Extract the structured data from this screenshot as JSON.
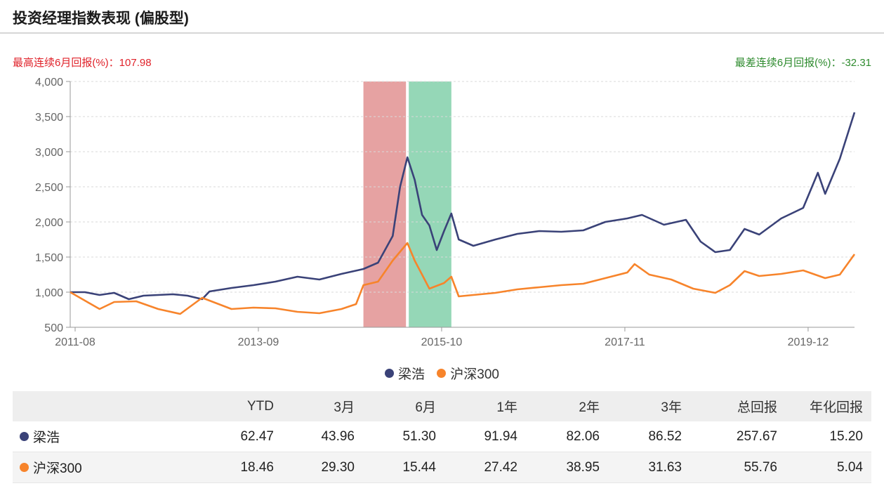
{
  "page_title": "投资经理指数表现 (偏股型)",
  "stats": {
    "best": "最高连续6月回报(%)：107.98",
    "worst": "最差连续6月回报(%)：-32.31"
  },
  "colors": {
    "manager": "#3a4278",
    "benchmark": "#f7842b",
    "best_band": "#d97070",
    "worst_band": "#5cc191",
    "grid": "#d9d9d9",
    "axis": "#999999",
    "tick_text": "#666666"
  },
  "chart_data": {
    "type": "line",
    "x_range": [
      "2011-08",
      "2020-07"
    ],
    "ylim": [
      500,
      4000
    ],
    "y_ticks": [
      "500",
      "1,000",
      "1,500",
      "2,000",
      "2,500",
      "3,000",
      "3,500",
      "4,000"
    ],
    "x_ticks": [
      "2011-08",
      "2013-09",
      "2015-10",
      "2017-11",
      "2019-12"
    ],
    "grid": true,
    "legend_position": "bottom-center",
    "highlight_bands": [
      {
        "name": "最高连续6月回报",
        "start": "2014-12",
        "end": "2015-06"
      },
      {
        "name": "最差连续6月回报",
        "start": "2015-06",
        "end": "2015-12"
      }
    ],
    "series": [
      {
        "name": "梁浩",
        "color": "#3a4278",
        "points": [
          [
            "2011-08",
            1000
          ],
          [
            "2011-10",
            1000
          ],
          [
            "2011-12",
            960
          ],
          [
            "2012-02",
            990
          ],
          [
            "2012-04",
            900
          ],
          [
            "2012-06",
            950
          ],
          [
            "2012-08",
            960
          ],
          [
            "2012-10",
            970
          ],
          [
            "2012-12",
            950
          ],
          [
            "2013-02",
            900
          ],
          [
            "2013-03",
            1010
          ],
          [
            "2013-06",
            1060
          ],
          [
            "2013-09",
            1100
          ],
          [
            "2013-12",
            1150
          ],
          [
            "2014-03",
            1220
          ],
          [
            "2014-06",
            1180
          ],
          [
            "2014-09",
            1260
          ],
          [
            "2014-12",
            1330
          ],
          [
            "2015-02",
            1420
          ],
          [
            "2015-04",
            1800
          ],
          [
            "2015-05",
            2500
          ],
          [
            "2015-06",
            2920
          ],
          [
            "2015-07",
            2600
          ],
          [
            "2015-08",
            2100
          ],
          [
            "2015-09",
            1950
          ],
          [
            "2015-10",
            1600
          ],
          [
            "2015-11",
            1870
          ],
          [
            "2015-12",
            2120
          ],
          [
            "2016-01",
            1750
          ],
          [
            "2016-03",
            1660
          ],
          [
            "2016-06",
            1750
          ],
          [
            "2016-09",
            1830
          ],
          [
            "2016-12",
            1870
          ],
          [
            "2017-03",
            1860
          ],
          [
            "2017-06",
            1880
          ],
          [
            "2017-09",
            2000
          ],
          [
            "2017-12",
            2050
          ],
          [
            "2018-02",
            2100
          ],
          [
            "2018-05",
            1960
          ],
          [
            "2018-08",
            2030
          ],
          [
            "2018-10",
            1720
          ],
          [
            "2018-12",
            1570
          ],
          [
            "2019-02",
            1600
          ],
          [
            "2019-04",
            1900
          ],
          [
            "2019-06",
            1820
          ],
          [
            "2019-09",
            2050
          ],
          [
            "2019-12",
            2200
          ],
          [
            "2020-02",
            2700
          ],
          [
            "2020-03",
            2400
          ],
          [
            "2020-05",
            2900
          ],
          [
            "2020-07",
            3560
          ]
        ]
      },
      {
        "name": "沪深300",
        "color": "#f7842b",
        "points": [
          [
            "2011-08",
            1000
          ],
          [
            "2011-10",
            880
          ],
          [
            "2011-12",
            760
          ],
          [
            "2012-02",
            860
          ],
          [
            "2012-05",
            870
          ],
          [
            "2012-08",
            760
          ],
          [
            "2012-11",
            690
          ],
          [
            "2013-02",
            920
          ],
          [
            "2013-06",
            760
          ],
          [
            "2013-09",
            780
          ],
          [
            "2013-12",
            770
          ],
          [
            "2014-03",
            720
          ],
          [
            "2014-06",
            700
          ],
          [
            "2014-09",
            760
          ],
          [
            "2014-11",
            830
          ],
          [
            "2014-12",
            1100
          ],
          [
            "2015-02",
            1150
          ],
          [
            "2015-04",
            1450
          ],
          [
            "2015-06",
            1700
          ],
          [
            "2015-07",
            1450
          ],
          [
            "2015-08",
            1250
          ],
          [
            "2015-09",
            1050
          ],
          [
            "2015-11",
            1130
          ],
          [
            "2015-12",
            1220
          ],
          [
            "2016-01",
            940
          ],
          [
            "2016-03",
            960
          ],
          [
            "2016-06",
            990
          ],
          [
            "2016-09",
            1040
          ],
          [
            "2016-12",
            1070
          ],
          [
            "2017-03",
            1100
          ],
          [
            "2017-06",
            1120
          ],
          [
            "2017-09",
            1200
          ],
          [
            "2017-12",
            1280
          ],
          [
            "2018-01",
            1400
          ],
          [
            "2018-03",
            1250
          ],
          [
            "2018-06",
            1180
          ],
          [
            "2018-09",
            1050
          ],
          [
            "2018-12",
            990
          ],
          [
            "2019-02",
            1100
          ],
          [
            "2019-04",
            1300
          ],
          [
            "2019-06",
            1230
          ],
          [
            "2019-09",
            1260
          ],
          [
            "2019-12",
            1310
          ],
          [
            "2020-03",
            1200
          ],
          [
            "2020-05",
            1250
          ],
          [
            "2020-07",
            1540
          ]
        ]
      }
    ]
  },
  "legend": [
    {
      "label": "梁浩",
      "color": "#3a4278"
    },
    {
      "label": "沪深300",
      "color": "#f7842b"
    }
  ],
  "table": {
    "headers": [
      "",
      "YTD",
      "3月",
      "6月",
      "1年",
      "2年",
      "3年",
      "总回报",
      "年化回报"
    ],
    "rows": [
      {
        "name": "梁浩",
        "color": "#3a4278",
        "values": [
          "62.47",
          "43.96",
          "51.30",
          "91.94",
          "82.06",
          "86.52",
          "257.67",
          "15.20"
        ]
      },
      {
        "name": "沪深300",
        "color": "#f7842b",
        "values": [
          "18.46",
          "29.30",
          "15.44",
          "27.42",
          "38.95",
          "31.63",
          "55.76",
          "5.04"
        ]
      }
    ]
  }
}
